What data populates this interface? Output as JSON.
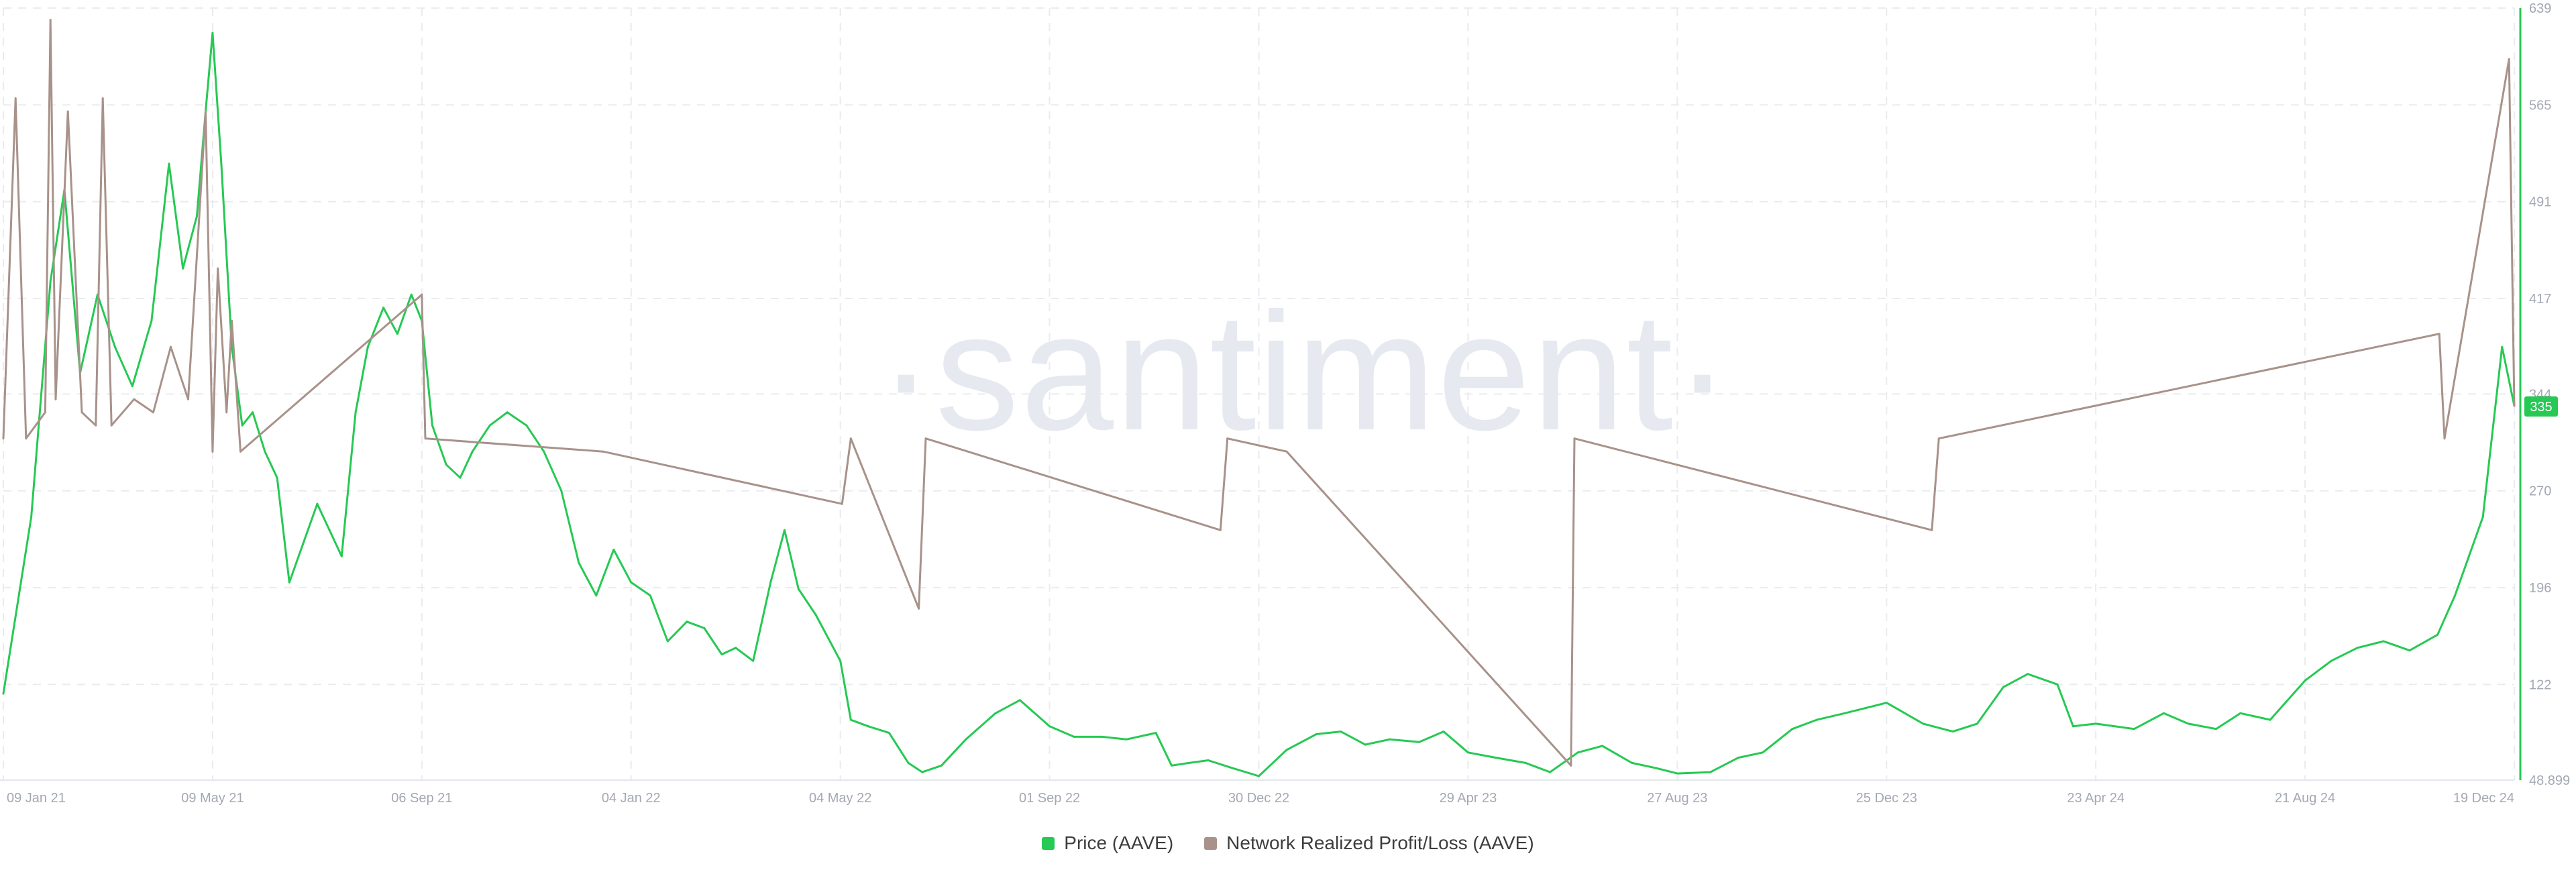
{
  "chart_data": {
    "type": "line",
    "watermark": "·santiment·",
    "x_ticks": [
      "09 Jan 21",
      "09 May 21",
      "06 Sep 21",
      "04 Jan 22",
      "04 May 22",
      "01 Sep 22",
      "30 Dec 22",
      "29 Apr 23",
      "27 Aug 23",
      "25 Dec 23",
      "23 Apr 24",
      "21 Aug 24",
      "19 Dec 24"
    ],
    "y_ticks": [
      "48.899",
      "122",
      "196",
      "270",
      "344",
      "417",
      "491",
      "565",
      "639"
    ],
    "ylim": [
      48.899,
      639
    ],
    "current_value_label": "335",
    "grid": true,
    "legend_position": "bottom-center",
    "series": [
      {
        "name": "Price (AAVE)",
        "color": "#26c953",
        "points": [
          [
            "09 Jan 21",
            115
          ],
          [
            "25 Jan 21",
            250
          ],
          [
            "05 Feb 21",
            430
          ],
          [
            "13 Feb 21",
            500
          ],
          [
            "22 Feb 21",
            360
          ],
          [
            "04 Mar 21",
            420
          ],
          [
            "14 Mar 21",
            380
          ],
          [
            "24 Mar 21",
            350
          ],
          [
            "04 Apr 21",
            400
          ],
          [
            "14 Apr 21",
            520
          ],
          [
            "22 Apr 21",
            440
          ],
          [
            "30 Apr 21",
            480
          ],
          [
            "05 May 21",
            560
          ],
          [
            "09 May 21",
            620
          ],
          [
            "14 May 21",
            520
          ],
          [
            "20 May 21",
            380
          ],
          [
            "26 May 21",
            320
          ],
          [
            "01 Jun 21",
            330
          ],
          [
            "08 Jun 21",
            300
          ],
          [
            "15 Jun 21",
            280
          ],
          [
            "22 Jun 21",
            200
          ],
          [
            "30 Jun 21",
            230
          ],
          [
            "08 Jul 21",
            260
          ],
          [
            "15 Jul 21",
            240
          ],
          [
            "22 Jul 21",
            220
          ],
          [
            "30 Jul 21",
            330
          ],
          [
            "06 Aug 21",
            380
          ],
          [
            "15 Aug 21",
            410
          ],
          [
            "23 Aug 21",
            390
          ],
          [
            "31 Aug 21",
            420
          ],
          [
            "06 Sep 21",
            400
          ],
          [
            "12 Sep 21",
            320
          ],
          [
            "20 Sep 21",
            290
          ],
          [
            "28 Sep 21",
            280
          ],
          [
            "05 Oct 21",
            300
          ],
          [
            "15 Oct 21",
            320
          ],
          [
            "25 Oct 21",
            330
          ],
          [
            "05 Nov 21",
            320
          ],
          [
            "15 Nov 21",
            300
          ],
          [
            "25 Nov 21",
            270
          ],
          [
            "05 Dec 21",
            215
          ],
          [
            "15 Dec 21",
            190
          ],
          [
            "25 Dec 21",
            225
          ],
          [
            "04 Jan 22",
            200
          ],
          [
            "15 Jan 22",
            190
          ],
          [
            "25 Jan 22",
            155
          ],
          [
            "05 Feb 22",
            170
          ],
          [
            "15 Feb 22",
            165
          ],
          [
            "25 Feb 22",
            145
          ],
          [
            "05 Mar 22",
            150
          ],
          [
            "15 Mar 22",
            140
          ],
          [
            "25 Mar 22",
            200
          ],
          [
            "02 Apr 22",
            240
          ],
          [
            "10 Apr 22",
            195
          ],
          [
            "20 Apr 22",
            175
          ],
          [
            "04 May 22",
            140
          ],
          [
            "10 May 22",
            95
          ],
          [
            "20 May 22",
            90
          ],
          [
            "01 Jun 22",
            85
          ],
          [
            "12 Jun 22",
            62
          ],
          [
            "20 Jun 22",
            55
          ],
          [
            "01 Jul 22",
            60
          ],
          [
            "15 Jul 22",
            80
          ],
          [
            "01 Aug 22",
            100
          ],
          [
            "15 Aug 22",
            110
          ],
          [
            "01 Sep 22",
            90
          ],
          [
            "15 Sep 22",
            82
          ],
          [
            "01 Oct 22",
            82
          ],
          [
            "15 Oct 22",
            80
          ],
          [
            "01 Nov 22",
            85
          ],
          [
            "10 Nov 22",
            60
          ],
          [
            "20 Nov 22",
            62
          ],
          [
            "01 Dec 22",
            64
          ],
          [
            "15 Dec 22",
            58
          ],
          [
            "30 Dec 22",
            52
          ],
          [
            "15 Jan 23",
            72
          ],
          [
            "01 Feb 23",
            84
          ],
          [
            "15 Feb 23",
            86
          ],
          [
            "01 Mar 23",
            76
          ],
          [
            "15 Mar 23",
            80
          ],
          [
            "01 Apr 23",
            78
          ],
          [
            "15 Apr 23",
            86
          ],
          [
            "29 Apr 23",
            70
          ],
          [
            "15 May 23",
            66
          ],
          [
            "01 Jun 23",
            62
          ],
          [
            "15 Jun 23",
            55
          ],
          [
            "01 Jul 23",
            70
          ],
          [
            "15 Jul 23",
            75
          ],
          [
            "01 Aug 23",
            62
          ],
          [
            "15 Aug 23",
            58
          ],
          [
            "27 Aug 23",
            54
          ],
          [
            "15 Sep 23",
            55
          ],
          [
            "01 Oct 23",
            66
          ],
          [
            "15 Oct 23",
            70
          ],
          [
            "01 Nov 23",
            88
          ],
          [
            "15 Nov 23",
            95
          ],
          [
            "01 Dec 23",
            100
          ],
          [
            "25 Dec 23",
            108
          ],
          [
            "15 Jan 24",
            92
          ],
          [
            "01 Feb 24",
            86
          ],
          [
            "15 Feb 24",
            92
          ],
          [
            "01 Mar 24",
            120
          ],
          [
            "15 Mar 24",
            130
          ],
          [
            "01 Apr 24",
            122
          ],
          [
            "10 Apr 24",
            90
          ],
          [
            "23 Apr 24",
            92
          ],
          [
            "15 May 24",
            88
          ],
          [
            "01 Jun 24",
            100
          ],
          [
            "15 Jun 24",
            92
          ],
          [
            "01 Jul 24",
            88
          ],
          [
            "15 Jul 24",
            100
          ],
          [
            "01 Aug 24",
            95
          ],
          [
            "21 Aug 24",
            125
          ],
          [
            "05 Sep 24",
            140
          ],
          [
            "20 Sep 24",
            150
          ],
          [
            "05 Oct 24",
            155
          ],
          [
            "20 Oct 24",
            148
          ],
          [
            "05 Nov 24",
            160
          ],
          [
            "15 Nov 24",
            190
          ],
          [
            "01 Dec 24",
            250
          ],
          [
            "12 Dec 24",
            380
          ],
          [
            "19 Dec 24",
            335
          ]
        ]
      },
      {
        "name": "Network Realized Profit/Loss (AAVE)",
        "color": "#a8928a",
        "baseline": 310,
        "points": [
          [
            "09 Jan 21",
            310
          ],
          [
            "16 Jan 21",
            570
          ],
          [
            "22 Jan 21",
            310
          ],
          [
            "02 Feb 21",
            330
          ],
          [
            "05 Feb 21",
            630
          ],
          [
            "08 Feb 21",
            340
          ],
          [
            "15 Feb 21",
            560
          ],
          [
            "23 Feb 21",
            330
          ],
          [
            "03 Mar 21",
            320
          ],
          [
            "07 Mar 21",
            570
          ],
          [
            "12 Mar 21",
            320
          ],
          [
            "25 Mar 21",
            340
          ],
          [
            "05 Apr 21",
            330
          ],
          [
            "15 Apr 21",
            380
          ],
          [
            "25 Apr 21",
            340
          ],
          [
            "05 May 21",
            560
          ],
          [
            "09 May 21",
            300
          ],
          [
            "12 May 21",
            440
          ],
          [
            "17 May 21",
            330
          ],
          [
            "20 May 21",
            400
          ],
          [
            "25 May 21",
            300
          ],
          [
            "06 Sep 21",
            420
          ],
          [
            "08 Sep 21",
            310
          ],
          [
            "19 Dec 21",
            300
          ],
          [
            "05 May 22",
            260
          ],
          [
            "10 May 22",
            310
          ],
          [
            "18 Jun 22",
            180
          ],
          [
            "22 Jun 22",
            310
          ],
          [
            "08 Dec 22",
            240
          ],
          [
            "12 Dec 22",
            310
          ],
          [
            "15 Jan 23",
            300
          ],
          [
            "27 Jun 23",
            60
          ],
          [
            "29 Jun 23",
            310
          ],
          [
            "20 Jan 24",
            240
          ],
          [
            "24 Jan 24",
            310
          ],
          [
            "06 Nov 24",
            390
          ],
          [
            "09 Nov 24",
            310
          ],
          [
            "16 Dec 24",
            600
          ],
          [
            "19 Dec 24",
            335
          ]
        ]
      }
    ]
  }
}
